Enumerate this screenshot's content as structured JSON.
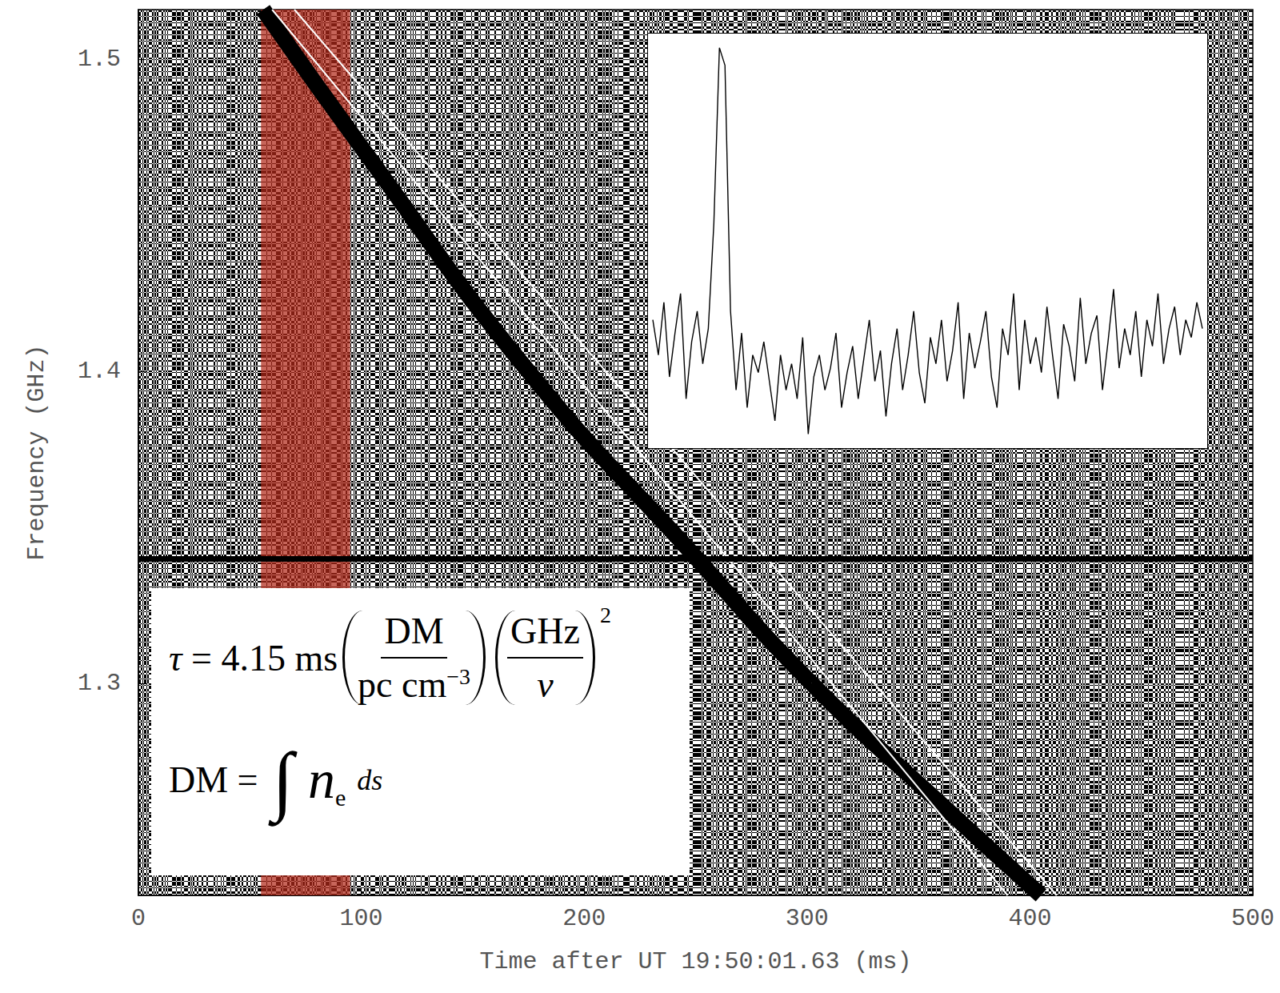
{
  "chart_data": {
    "type": "dynamic_spectrum",
    "xlabel": "Time after UT 19:50:01.63 (ms)",
    "ylabel": "Frequency (GHz)",
    "xlim": [
      0,
      500
    ],
    "xticks": [
      0,
      100,
      200,
      300,
      400,
      500
    ],
    "ylim": [
      1.232,
      1.516
    ],
    "yticks": [
      1.3,
      1.4,
      1.5
    ],
    "grid": false,
    "pulse_track": {
      "x": [
        56,
        102,
        175,
        248,
        302,
        362,
        405
      ],
      "y": [
        1.516,
        1.47,
        1.4,
        1.342,
        1.3,
        1.26,
        1.232
      ],
      "color": "#000000"
    },
    "fit_lines": [
      {
        "x": [
          60,
          390
        ],
        "y": [
          1.516,
          1.232
        ]
      },
      {
        "x": [
          70,
          412
        ],
        "y": [
          1.516,
          1.232
        ]
      }
    ],
    "color": "#ffffff",
    "rfi_frequencies": [
      1.342
    ],
    "highlight": {
      "x": [
        55,
        95
      ],
      "color": "#b22a1a"
    },
    "inset": {
      "tick_labels": false,
      "values": [
        38,
        30,
        42,
        25,
        35,
        44,
        20,
        33,
        40,
        28,
        36,
        60,
        100,
        96,
        40,
        22,
        35,
        18,
        30,
        26,
        33,
        24,
        15,
        30,
        22,
        28,
        20,
        34,
        12,
        25,
        30,
        22,
        27,
        35,
        18,
        26,
        32,
        20,
        29,
        38,
        24,
        31,
        16,
        28,
        36,
        22,
        30,
        40,
        26,
        19,
        34,
        28,
        38,
        24,
        31,
        42,
        20,
        35,
        27,
        33,
        40,
        25,
        18,
        36,
        30,
        44,
        22,
        38,
        28,
        34,
        26,
        41,
        30,
        20,
        37,
        32,
        24,
        43,
        28,
        35,
        39,
        22,
        33,
        45,
        27,
        36,
        30,
        40,
        25,
        38,
        32,
        44,
        28,
        36,
        41,
        30,
        38,
        34,
        42,
        36
      ]
    },
    "equations": [
      {
        "lhs": "τ = 4.15 ms",
        "factors": [
          {
            "numerator": "DM",
            "denominator": "pc cm",
            "denominator_exponent": "−3"
          },
          {
            "numerator": "GHz",
            "denominator": "ν"
          }
        ],
        "exponent": "2"
      },
      {
        "lhs": "DM =",
        "integral": "∫",
        "variable": "n",
        "subscript": "e",
        "differential": "ds"
      }
    ]
  }
}
